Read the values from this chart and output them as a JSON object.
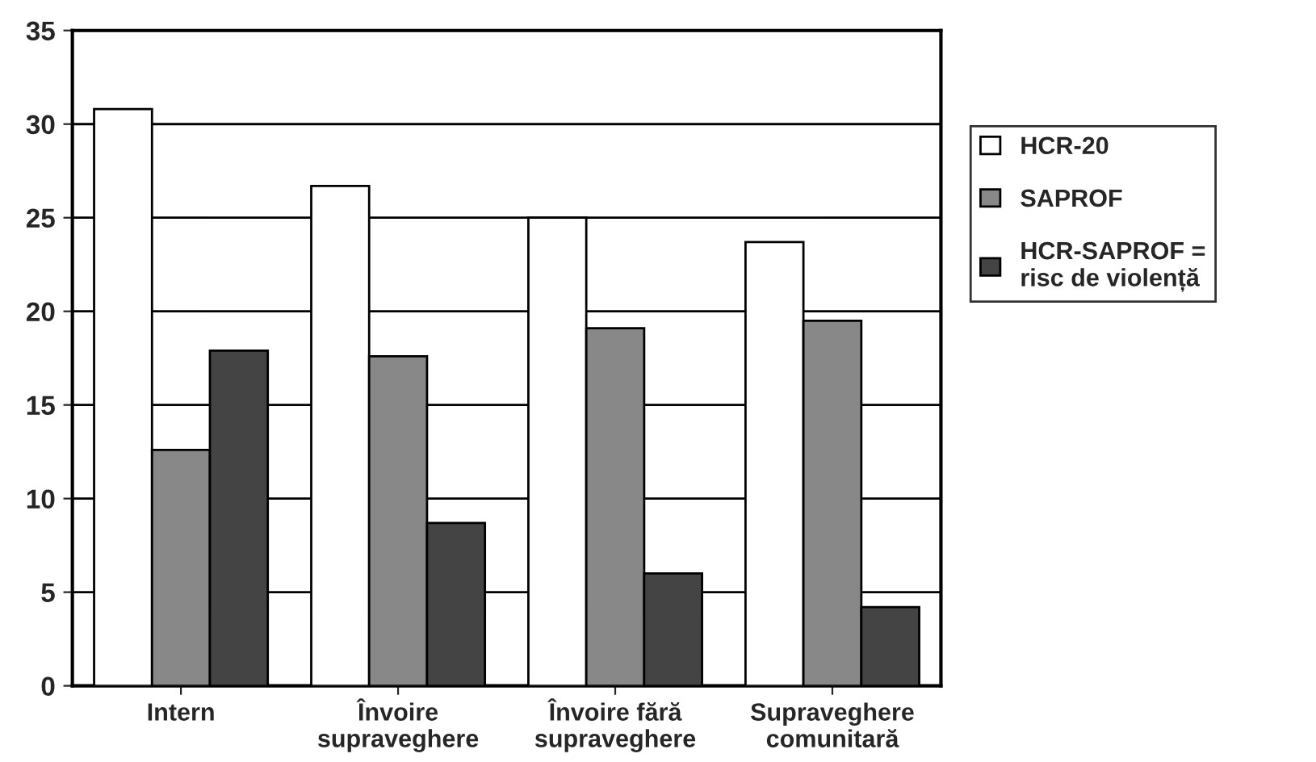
{
  "chart_data": {
    "type": "bar",
    "categories": [
      "Intern",
      "Învoire\nsupraveghere",
      "Învoire fără\nsupraveghere",
      "Supraveghere\ncomunitară"
    ],
    "series": [
      {
        "name": "HCR-20",
        "color": "#ffffff",
        "values": [
          30.8,
          26.7,
          25.0,
          23.7
        ]
      },
      {
        "name": "SAPROF",
        "color": "#888888",
        "values": [
          12.6,
          17.6,
          19.1,
          19.5
        ]
      },
      {
        "name": "HCR-SAPROF =\nrisc de violență",
        "color": "#444444",
        "values": [
          17.9,
          8.7,
          6.0,
          4.2
        ]
      }
    ],
    "ylim": [
      0,
      35
    ],
    "yticks": [
      0,
      5,
      10,
      15,
      20,
      25,
      30,
      35
    ],
    "grid": "y",
    "legend": "right"
  }
}
